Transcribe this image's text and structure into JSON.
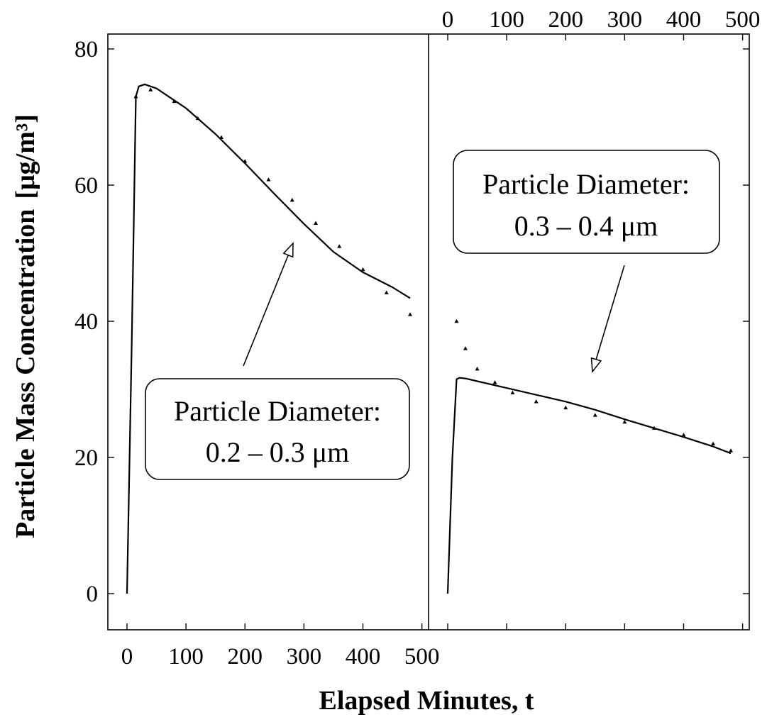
{
  "figure": {
    "ylabel": "Particle Mass Concentration",
    "ylabel_units": "[μg/m³]",
    "xlabel": "Elapsed Minutes, t"
  },
  "chart_data": [
    {
      "type": "scatter",
      "panel": "left",
      "annotation": [
        "Particle Diameter:",
        "0.2 – 0.3 μm"
      ],
      "xlabel": "Elapsed Minutes, t",
      "ylabel": "Particle Mass Concentration [μg/m³]",
      "xlim": [
        -25,
        510
      ],
      "ylim": [
        -5,
        82
      ],
      "x_ticks": [
        0,
        100,
        200,
        300,
        400,
        500
      ],
      "y_ticks": [
        0,
        20,
        40,
        60,
        80
      ],
      "x_tick_labels_position": "bottom",
      "y_tick_labels_position": "left",
      "grid": false,
      "series": [
        {
          "kind": "line",
          "x": [
            0,
            8,
            15,
            20,
            30,
            50,
            100,
            150,
            200,
            250,
            300,
            350,
            400,
            450,
            480
          ],
          "y": [
            0,
            37,
            73,
            74.5,
            74.8,
            74.2,
            71.3,
            67.5,
            63.2,
            58.7,
            54.3,
            50.2,
            47.2,
            45.0,
            43.4
          ]
        },
        {
          "kind": "points",
          "marker": "triangle",
          "x": [
            15,
            40,
            80,
            120,
            160,
            200,
            240,
            280,
            320,
            360,
            400,
            440,
            480
          ],
          "y": [
            73.0,
            74.0,
            72.3,
            69.8,
            67.0,
            63.5,
            60.8,
            57.8,
            54.4,
            51.0,
            47.6,
            44.2,
            41.0
          ]
        }
      ]
    },
    {
      "type": "scatter",
      "panel": "right",
      "annotation": [
        "Particle Diameter:",
        "0.3 – 0.4 μm"
      ],
      "xlim": [
        -25,
        510
      ],
      "ylim": [
        -5,
        82
      ],
      "x_ticks": [
        0,
        100,
        200,
        300,
        400,
        500
      ],
      "y_ticks": [
        0,
        20,
        40,
        60,
        80
      ],
      "x_tick_labels_position": "top",
      "y_tick_labels_position": "none",
      "grid": false,
      "series": [
        {
          "kind": "line",
          "x": [
            0,
            8,
            15,
            20,
            30,
            50,
            100,
            150,
            200,
            250,
            300,
            350,
            400,
            450,
            480
          ],
          "y": [
            0,
            20,
            31.5,
            31.7,
            31.6,
            31.2,
            30.2,
            29.2,
            28.2,
            27.0,
            25.6,
            24.3,
            23.0,
            21.6,
            20.6
          ]
        },
        {
          "kind": "points",
          "marker": "triangle",
          "x": [
            15,
            30,
            50,
            80,
            110,
            150,
            200,
            250,
            300,
            350,
            400,
            450,
            480
          ],
          "y": [
            40.0,
            36.0,
            33.0,
            31.0,
            29.5,
            28.2,
            27.3,
            26.2,
            25.2,
            24.3,
            23.3,
            22.0,
            21.0
          ]
        }
      ]
    }
  ]
}
